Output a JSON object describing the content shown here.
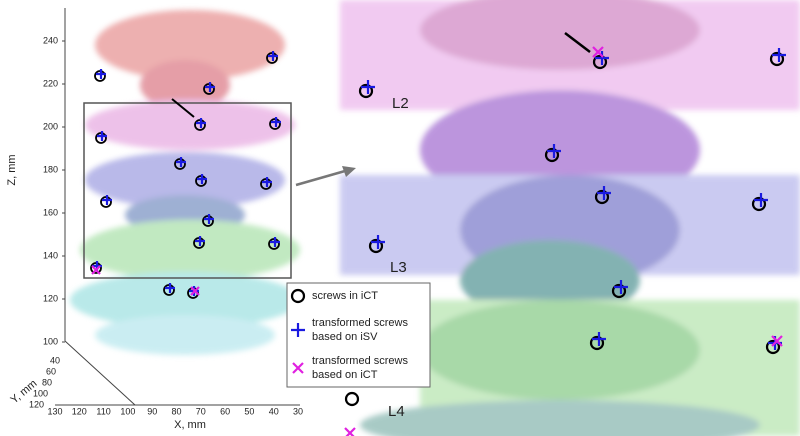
{
  "left_panel": {
    "z_axis": {
      "label": "Z, mm",
      "ticks": [
        "240",
        "220",
        "200",
        "180",
        "160",
        "140",
        "120",
        "100"
      ]
    },
    "y_axis": {
      "label": "Y, mm",
      "ticks": [
        "40",
        "60",
        "80",
        "100",
        "120"
      ]
    },
    "x_axis": {
      "label": "X, mm",
      "ticks": [
        "130",
        "120",
        "110",
        "100",
        "90",
        "80",
        "70",
        "60",
        "50",
        "40",
        "30"
      ]
    }
  },
  "right_panel": {
    "levels": [
      "L2",
      "L3",
      "L4"
    ]
  },
  "legend": [
    {
      "marker": "circle",
      "lines": [
        "screws in iCT"
      ]
    },
    {
      "marker": "plus",
      "lines": [
        "transformed screws",
        "based on iSV"
      ]
    },
    {
      "marker": "cross",
      "lines": [
        "transformed screws",
        "based on iCT"
      ]
    }
  ]
}
